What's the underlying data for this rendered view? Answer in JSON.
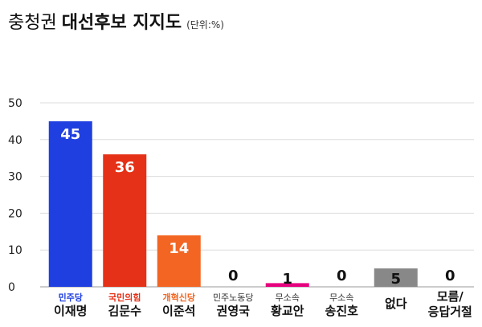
{
  "title": {
    "region": "충청권",
    "main": "대선후보 지지도",
    "unit": "(단위:%)"
  },
  "chart_data": {
    "type": "bar",
    "title": "충청권 대선후보 지지도",
    "unit": "(단위:%)",
    "ylim": [
      0,
      50
    ],
    "yticks": [
      0,
      10,
      20,
      30,
      40,
      50
    ],
    "grid": true,
    "categories": [
      "이재명",
      "김문수",
      "이준석",
      "권영국",
      "황교안",
      "송진호",
      "없다",
      "모름/응답거절"
    ],
    "parties": [
      "민주당",
      "국민의힘",
      "개혁신당",
      "민주노동당",
      "무소속",
      "무소속",
      "",
      ""
    ],
    "values": [
      45,
      36,
      14,
      0,
      1,
      0,
      5,
      0
    ],
    "colors": [
      "#1f3fe0",
      "#e53117",
      "#f26522",
      "#cccccc",
      "#e6007e",
      "#cccccc",
      "#888888",
      "#cccccc"
    ]
  }
}
